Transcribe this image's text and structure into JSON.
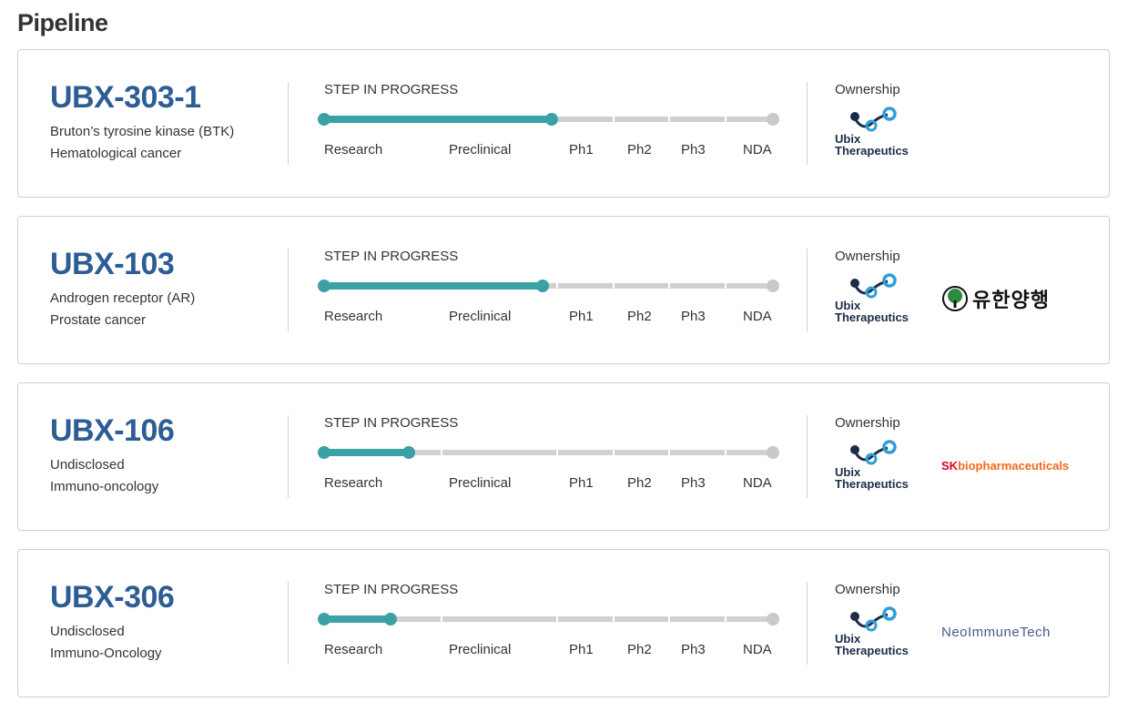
{
  "page_title": "Pipeline",
  "step_title": "STEP IN PROGRESS",
  "ownership_title": "Ownership",
  "stages": [
    "Research",
    "Preclinical",
    "Ph1",
    "Ph2",
    "Ph3",
    "NDA"
  ],
  "owner_logo": {
    "line1": "Ubix",
    "line2": "Therapeutics"
  },
  "colors": {
    "accent": "#3aa1a5",
    "code": "#2c5d94",
    "track": "#d0d0d0"
  },
  "programs": [
    {
      "code": "UBX-303-1",
      "target": "Bruton’s tyrosine kinase (BTK)",
      "indication": "Hematological cancer",
      "progress": 0.5,
      "partner": null
    },
    {
      "code": "UBX-103",
      "target": "Androgen receptor (AR)",
      "indication": "Prostate cancer",
      "progress": 0.48,
      "partner": {
        "type": "yuhan",
        "name": "유한양행"
      }
    },
    {
      "code": "UBX-106",
      "target": "Undisclosed",
      "indication": "Immuno-oncology",
      "progress": 0.185,
      "partner": {
        "type": "sk",
        "name_prefix": "SK",
        "name_rest": "biopharmaceuticals"
      }
    },
    {
      "code": "UBX-306",
      "target": "Undisclosed",
      "indication": "Immuno-Oncology",
      "progress": 0.145,
      "partner": {
        "type": "neo",
        "name": "NeoImmuneTech"
      }
    }
  ]
}
